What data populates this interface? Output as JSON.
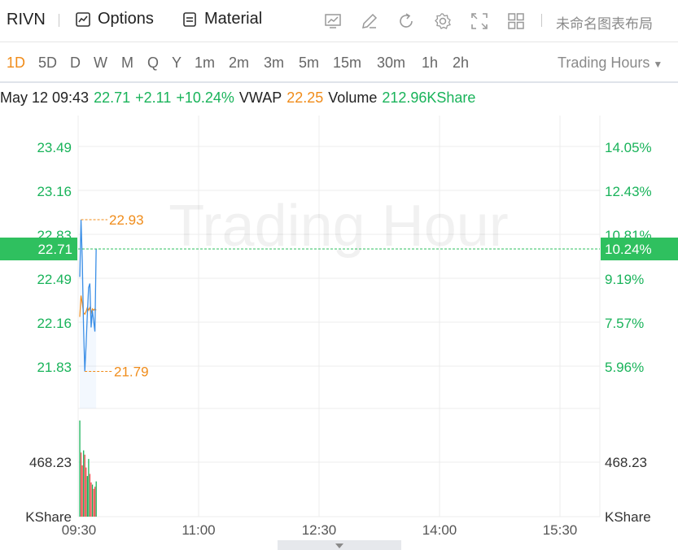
{
  "toolbar": {
    "ticker": "RIVN",
    "options_label": "Options",
    "material_label": "Material",
    "icons": [
      "chart-icon",
      "edit-icon",
      "refresh-icon",
      "settings-icon",
      "fullscreen-icon",
      "grid-icon"
    ],
    "layout_name": "未命名图表布局"
  },
  "periods": {
    "items": [
      "1D",
      "5D",
      "D",
      "W",
      "M",
      "Q",
      "Y",
      "1m",
      "2m",
      "3m",
      "5m",
      "15m",
      "30m",
      "1h",
      "2h"
    ],
    "active": "1D",
    "hours_select": "Trading Hours"
  },
  "info": {
    "datetime": "May 12 09:43",
    "price": "22.71",
    "change": "+2.11",
    "change_pct": "+10.24%",
    "vwap_label": "VWAP",
    "vwap_value": "22.25",
    "volume_label": "Volume",
    "volume_value": "212.96KShare"
  },
  "colors": {
    "up": "#19b35a",
    "down": "#ef4f4f",
    "price_line": "#3a8ee6",
    "vwap_line": "#f08c1a",
    "marker": "#f08c1a",
    "grid": "#ececec",
    "current_label_bg": "#2fc05f"
  },
  "chart_data": {
    "type": "line",
    "watermark": "Trading Hour",
    "y_left_ticks": [
      "23.49",
      "23.16",
      "22.83",
      "22.49",
      "22.16",
      "21.83"
    ],
    "y_right_ticks": [
      "14.05%",
      "12.43%",
      "10.81%",
      "9.19%",
      "7.57%",
      "5.96%"
    ],
    "x_ticks": [
      "09:30",
      "11:00",
      "12:30",
      "14:00",
      "15:30"
    ],
    "current_price": "22.71",
    "current_pct": "10.24%",
    "high_label": "22.93",
    "low_label": "21.79",
    "price_series": [
      {
        "t": 0,
        "v": 22.5
      },
      {
        "t": 1,
        "v": 22.93
      },
      {
        "t": 2,
        "v": 22.62
      },
      {
        "t": 3,
        "v": 22.12
      },
      {
        "t": 4,
        "v": 21.79
      },
      {
        "t": 5,
        "v": 21.99
      },
      {
        "t": 6,
        "v": 22.22
      },
      {
        "t": 7,
        "v": 22.42
      },
      {
        "t": 8,
        "v": 22.45
      },
      {
        "t": 9,
        "v": 22.12
      },
      {
        "t": 10,
        "v": 22.25
      },
      {
        "t": 11,
        "v": 22.17
      },
      {
        "t": 12,
        "v": 22.09
      },
      {
        "t": 13,
        "v": 22.71
      }
    ],
    "vwap_series": [
      {
        "t": 0,
        "v": 22.2
      },
      {
        "t": 1,
        "v": 22.36
      },
      {
        "t": 2,
        "v": 22.3
      },
      {
        "t": 3,
        "v": 22.23
      },
      {
        "t": 4,
        "v": 22.22
      },
      {
        "t": 5,
        "v": 22.24
      },
      {
        "t": 6,
        "v": 22.27
      },
      {
        "t": 7,
        "v": 22.25
      },
      {
        "t": 8,
        "v": 22.27
      },
      {
        "t": 9,
        "v": 22.23
      },
      {
        "t": 10,
        "v": 22.26
      },
      {
        "t": 11,
        "v": 22.25
      },
      {
        "t": 12,
        "v": 22.26
      },
      {
        "t": 13,
        "v": 22.25
      }
    ],
    "ylim": [
      21.6,
      23.65
    ],
    "volume_ticks_left": [
      "468.23",
      "KShare"
    ],
    "volume_ticks_right": [
      "468.23",
      "KShare"
    ],
    "volume_bars": [
      {
        "t": 0,
        "v": 900,
        "dir": "up"
      },
      {
        "t": 1,
        "v": 600,
        "dir": "down"
      },
      {
        "t": 2,
        "v": 480,
        "dir": "down"
      },
      {
        "t": 3,
        "v": 620,
        "dir": "up"
      },
      {
        "t": 4,
        "v": 580,
        "dir": "down"
      },
      {
        "t": 5,
        "v": 460,
        "dir": "down"
      },
      {
        "t": 6,
        "v": 380,
        "dir": "up"
      },
      {
        "t": 7,
        "v": 540,
        "dir": "up"
      },
      {
        "t": 8,
        "v": 400,
        "dir": "down"
      },
      {
        "t": 9,
        "v": 320,
        "dir": "down"
      },
      {
        "t": 10,
        "v": 300,
        "dir": "up"
      },
      {
        "t": 11,
        "v": 260,
        "dir": "down"
      },
      {
        "t": 12,
        "v": 280,
        "dir": "down"
      },
      {
        "t": 13,
        "v": 330,
        "dir": "up"
      }
    ],
    "volume_max": 936.46
  }
}
